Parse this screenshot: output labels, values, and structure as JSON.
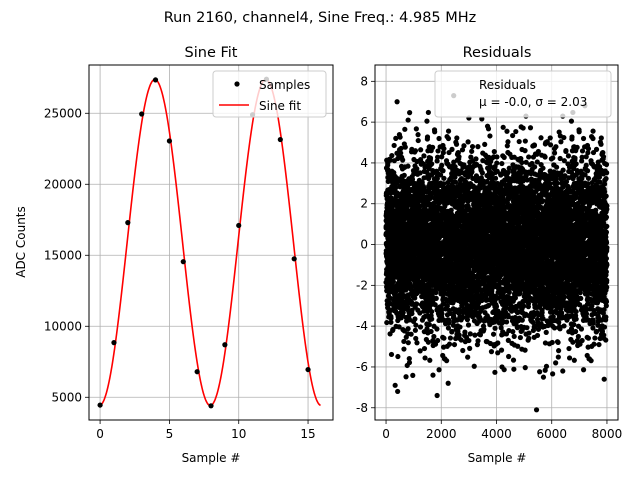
{
  "figure": {
    "suptitle": "Run 2160, channel4, Sine Freq.: 4.985 MHz"
  },
  "colors": {
    "sample_marker": "#000000",
    "fit_line": "#ff0000",
    "grid": "#b0b0b0",
    "residual_marker": "#000000"
  },
  "chart_data": [
    {
      "type": "scatter",
      "title": "Sine Fit",
      "xlabel": "Sample #",
      "ylabel": "ADC Counts",
      "xlim": [
        -0.8,
        16.8
      ],
      "ylim": [
        3400,
        28400
      ],
      "xticks": [
        0,
        5,
        10,
        15
      ],
      "yticks": [
        5000,
        10000,
        15000,
        20000,
        25000
      ],
      "grid": true,
      "legend": {
        "placement": "upper right",
        "entries": [
          "Samples",
          "Sine fit"
        ]
      },
      "series": [
        {
          "name": "Samples",
          "kind": "scatter",
          "x": [
            0,
            1,
            2,
            3,
            4,
            5,
            6,
            7,
            8,
            9,
            10,
            11,
            12,
            13,
            14,
            15
          ],
          "y": [
            4450,
            8850,
            17300,
            24950,
            27350,
            23050,
            14550,
            6800,
            4400,
            8700,
            17100,
            24900,
            27400,
            23150,
            14750,
            6950
          ]
        },
        {
          "name": "Sine fit",
          "kind": "line",
          "model": {
            "offset": 15900,
            "amplitude": 11480,
            "period": 8.0,
            "phase_sample": 1.95,
            "x_range": [
              0,
              15.9
            ]
          }
        }
      ]
    },
    {
      "type": "scatter",
      "title": "Residuals",
      "xlabel": "Sample #",
      "ylabel": "",
      "xlim": [
        -400,
        8400
      ],
      "ylim": [
        -8.6,
        8.8
      ],
      "xticks": [
        0,
        2000,
        4000,
        6000,
        8000
      ],
      "yticks": [
        -8,
        -6,
        -4,
        -2,
        0,
        2,
        4,
        6,
        8
      ],
      "grid": true,
      "legend": {
        "placement": "upper right",
        "entries": [
          "Residuals",
          "μ = -0.0, σ = 2.03"
        ]
      },
      "series": [
        {
          "name": "Residuals",
          "kind": "scatter",
          "count": 8000,
          "mean": -0.0,
          "std": 2.03,
          "outliers": [
            {
              "x": 400,
              "y": 7.0
            },
            {
              "x": 330,
              "y": -6.9
            },
            {
              "x": 420,
              "y": -7.2
            },
            {
              "x": 1850,
              "y": -7.4
            },
            {
              "x": 2450,
              "y": 7.3
            },
            {
              "x": 1700,
              "y": -6.4
            },
            {
              "x": 2250,
              "y": -6.8
            },
            {
              "x": 5450,
              "y": -8.1
            },
            {
              "x": 5700,
              "y": -6.5
            },
            {
              "x": 7200,
              "y": 6.8
            },
            {
              "x": 7900,
              "y": -6.6
            },
            {
              "x": 4200,
              "y": -6.0
            },
            {
              "x": 3000,
              "y": 6.2
            },
            {
              "x": 6400,
              "y": -6.2
            },
            {
              "x": 800,
              "y": 6.1
            }
          ]
        }
      ]
    }
  ]
}
